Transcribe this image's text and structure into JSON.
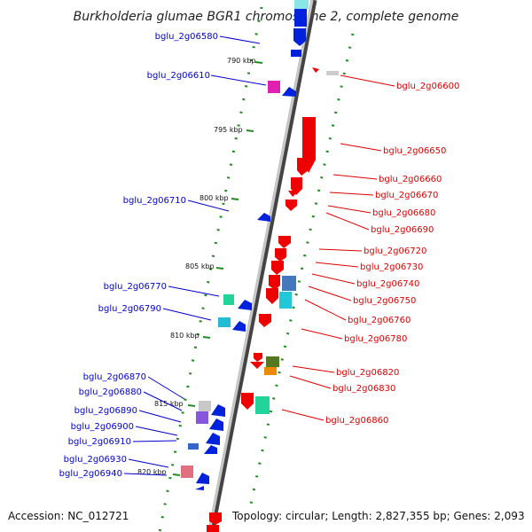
{
  "title": "Burkholderia glumae BGR1 chromosome 2, complete genome",
  "footer": {
    "accession": "Accession: NC_012721",
    "summary": "Topology: circular; Length: 2,827,355 bp; Genes: 2,093"
  },
  "kbp_markers": [
    "790 kbp",
    "795 kbp",
    "800 kbp",
    "805 kbp",
    "810 kbp",
    "815 kbp",
    "820 kbp"
  ],
  "colors": {
    "backbone": "#777777",
    "tick": "#228b22",
    "forward_label": "#0000cc",
    "reverse_label": "#dd0000",
    "forward_gene": "#0000ee",
    "reverse_gene": "#ee0000"
  },
  "forward_genes": [
    "bglu_2g06580",
    "bglu_2g06610",
    "bglu_2g06710",
    "bglu_2g06770",
    "bglu_2g06790",
    "bglu_2g06870",
    "bglu_2g06880",
    "bglu_2g06890",
    "bglu_2g06900",
    "bglu_2g06910",
    "bglu_2g06930",
    "bglu_2g06940"
  ],
  "reverse_genes": [
    "bglu_2g06600",
    "bglu_2g06650",
    "bglu_2g06660",
    "bglu_2g06670",
    "bglu_2g06680",
    "bglu_2g06690",
    "bglu_2g06720",
    "bglu_2g06730",
    "bglu_2g06740",
    "bglu_2g06750",
    "bglu_2g06760",
    "bglu_2g06780",
    "bglu_2g06820",
    "bglu_2g06830",
    "bglu_2g06860"
  ]
}
